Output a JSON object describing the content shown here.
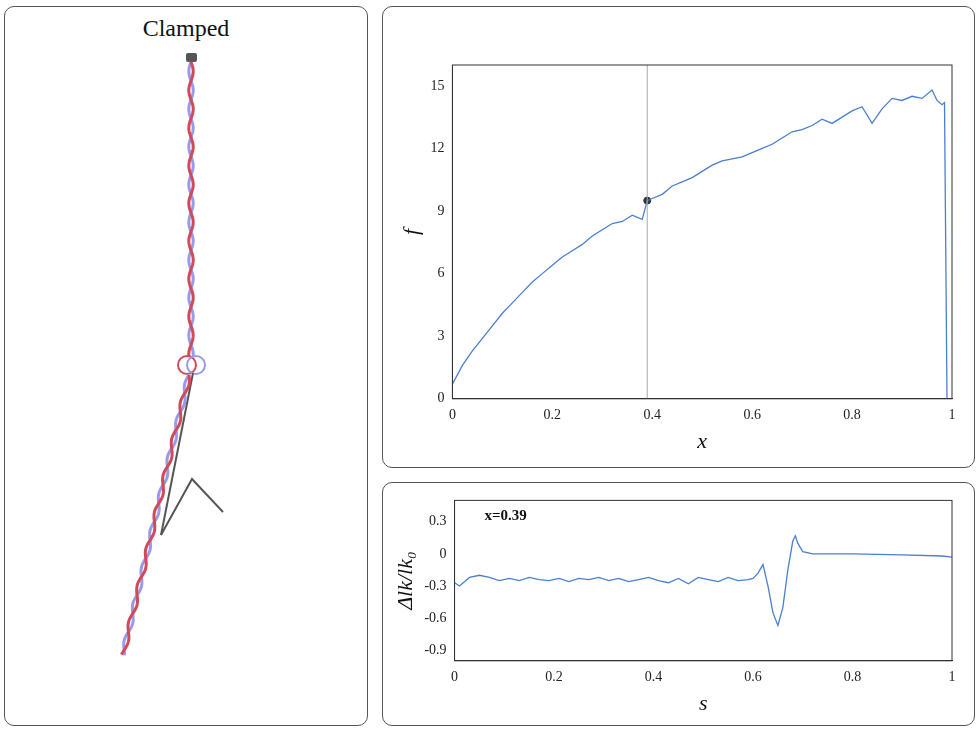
{
  "panel_title": "Clamped",
  "chart_data": [
    {
      "type": "line",
      "x_label": "x",
      "y_label": "f",
      "x": [
        0,
        0.02,
        0.04,
        0.06,
        0.08,
        0.1,
        0.12,
        0.14,
        0.16,
        0.18,
        0.2,
        0.22,
        0.24,
        0.26,
        0.28,
        0.3,
        0.32,
        0.34,
        0.36,
        0.38,
        0.39,
        0.4,
        0.42,
        0.44,
        0.46,
        0.48,
        0.5,
        0.52,
        0.54,
        0.56,
        0.58,
        0.6,
        0.62,
        0.64,
        0.66,
        0.68,
        0.7,
        0.72,
        0.74,
        0.76,
        0.78,
        0.8,
        0.82,
        0.84,
        0.86,
        0.88,
        0.9,
        0.92,
        0.94,
        0.96,
        0.97,
        0.98,
        0.985,
        0.99
      ],
      "values": [
        0.7,
        1.6,
        2.3,
        2.9,
        3.5,
        4.1,
        4.6,
        5.1,
        5.6,
        6.0,
        6.4,
        6.8,
        7.1,
        7.4,
        7.8,
        8.1,
        8.4,
        8.5,
        8.8,
        8.6,
        9.5,
        9.6,
        9.8,
        10.2,
        10.4,
        10.6,
        10.9,
        11.2,
        11.4,
        11.5,
        11.6,
        11.8,
        12.0,
        12.2,
        12.5,
        12.8,
        12.9,
        13.1,
        13.4,
        13.2,
        13.5,
        13.8,
        14.0,
        13.2,
        13.9,
        14.4,
        14.3,
        14.5,
        14.4,
        14.8,
        14.3,
        14.1,
        14.2,
        0
      ],
      "color": "#4a7fd0",
      "highlight": {
        "x": 0.39,
        "y": 9.5
      },
      "xlim": [
        0,
        1
      ],
      "xticks": [
        0,
        0.2,
        0.4,
        0.6,
        0.8,
        1
      ],
      "ylim": [
        0,
        16
      ],
      "yticks": [
        0,
        3,
        6,
        9,
        12,
        15
      ],
      "grid": false
    },
    {
      "type": "line",
      "x_label": "s",
      "y_label": "Δlk/lk₀",
      "annotation": "x=0.39",
      "x": [
        0,
        0.01,
        0.03,
        0.05,
        0.07,
        0.09,
        0.11,
        0.13,
        0.15,
        0.17,
        0.19,
        0.21,
        0.23,
        0.25,
        0.27,
        0.29,
        0.31,
        0.33,
        0.35,
        0.37,
        0.39,
        0.41,
        0.43,
        0.45,
        0.47,
        0.49,
        0.51,
        0.53,
        0.55,
        0.57,
        0.59,
        0.6,
        0.61,
        0.62,
        0.63,
        0.64,
        0.65,
        0.66,
        0.67,
        0.68,
        0.685,
        0.69,
        0.7,
        0.72,
        0.8,
        0.9,
        0.98,
        1
      ],
      "values": [
        -0.27,
        -0.3,
        -0.22,
        -0.2,
        -0.22,
        -0.25,
        -0.23,
        -0.25,
        -0.22,
        -0.24,
        -0.25,
        -0.23,
        -0.26,
        -0.23,
        -0.24,
        -0.22,
        -0.25,
        -0.23,
        -0.26,
        -0.24,
        -0.22,
        -0.25,
        -0.27,
        -0.23,
        -0.28,
        -0.22,
        -0.24,
        -0.26,
        -0.22,
        -0.25,
        -0.24,
        -0.23,
        -0.18,
        -0.1,
        -0.3,
        -0.55,
        -0.67,
        -0.5,
        -0.15,
        0.12,
        0.17,
        0.1,
        0.02,
        0,
        0,
        -0.01,
        -0.02,
        -0.03
      ],
      "color": "#4a7fd0",
      "xlim": [
        0,
        1
      ],
      "xticks": [
        0,
        0.2,
        0.4,
        0.6,
        0.8,
        1
      ],
      "ylim": [
        -1,
        0.5
      ],
      "yticks": [
        -0.9,
        -0.6,
        -0.3,
        0,
        0.3
      ],
      "grid": false
    }
  ]
}
